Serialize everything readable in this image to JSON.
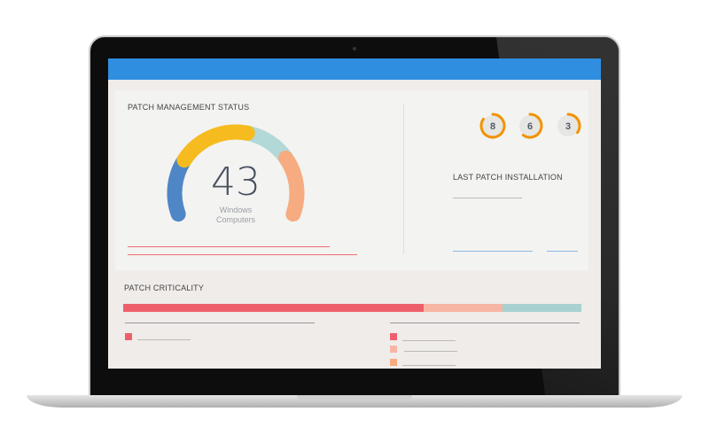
{
  "status": {
    "title": "PATCH MANAGEMENT STATUS",
    "count": "43",
    "label_line1": "Windows",
    "label_line2": "Computers",
    "gauge_segments": [
      {
        "fraction": 0.24,
        "color": "#4f86c6"
      },
      {
        "fraction": 0.31,
        "color": "#f6bb1e"
      },
      {
        "fraction": 0.2,
        "color": "#b3d8d8"
      },
      {
        "fraction": 0.25,
        "color": "#f6ac80"
      }
    ]
  },
  "rings": [
    {
      "value": "8",
      "progress": 0.85
    },
    {
      "value": "6",
      "progress": 0.6
    },
    {
      "value": "3",
      "progress": 0.35
    }
  ],
  "ring_color": "#f39200",
  "last_patch": {
    "title": "LAST PATCH INSTALLATION"
  },
  "criticality": {
    "title": "PATCH CRITICALITY",
    "segments": [
      {
        "fraction": 0.656,
        "color": "#ee5f6c"
      },
      {
        "fraction": 0.172,
        "color": "#f7b5a4"
      },
      {
        "fraction": 0.172,
        "color": "#a9d1d2"
      }
    ],
    "legend_colors": [
      "#ee5f6c",
      "#ee5f6c",
      "#f7b5a4",
      "#f6ac80"
    ]
  },
  "accent": "#2f8ee0"
}
